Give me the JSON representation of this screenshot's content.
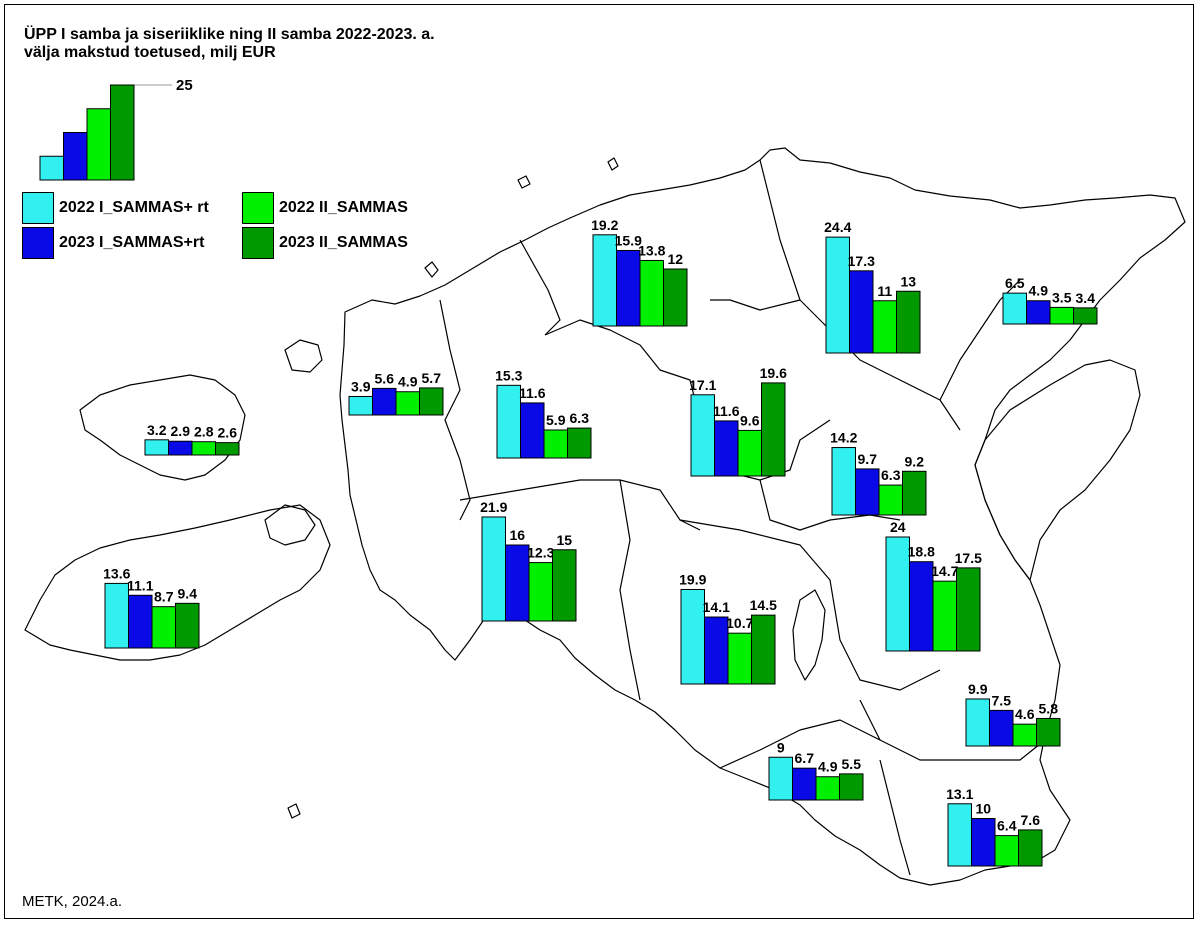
{
  "title_lines": [
    "ÜPP I samba ja siseriiklike ning II samba 2022-2023. a.",
    "välja makstud toetused, milj EUR"
  ],
  "credit": "METK, 2024.a.",
  "scale_value": 25,
  "scale_label": "25",
  "legend": [
    {
      "label": "2022 I_SAMMAS+ rt",
      "color": "#33f0f0"
    },
    {
      "label": "2023 I_SAMMAS+rt",
      "color": "#0a0ae6"
    },
    {
      "label": "2022 II_SAMMAS",
      "color": "#00f000"
    },
    {
      "label": "2023 II_SAMMAS",
      "color": "#009900"
    }
  ],
  "chart_data": {
    "type": "bar",
    "series": [
      "2022 I_SAMMAS+ rt",
      "2023 I_SAMMAS+rt",
      "2022 II_SAMMAS",
      "2023 II_SAMMAS"
    ],
    "unit": "milj EUR",
    "groups": [
      {
        "values": [
          19.2,
          15.9,
          13.8,
          12
        ],
        "labels": [
          "19.2",
          "15.9",
          "13.8",
          "12"
        ]
      },
      {
        "values": [
          24.4,
          17.3,
          11,
          13
        ],
        "labels": [
          "24.4",
          "17.3",
          "11",
          "13"
        ]
      },
      {
        "values": [
          6.5,
          4.9,
          3.5,
          3.4
        ],
        "labels": [
          "6.5",
          "4.9",
          "3.5",
          "3.4"
        ]
      },
      {
        "values": [
          3.9,
          5.6,
          4.9,
          5.7
        ],
        "labels": [
          "3.9",
          "5.6",
          "4.9",
          "5.7"
        ]
      },
      {
        "values": [
          3.2,
          2.9,
          2.8,
          2.6
        ],
        "labels": [
          "3.2",
          "2.9",
          "2.8",
          "2.6"
        ]
      },
      {
        "values": [
          15.3,
          11.6,
          5.9,
          6.3
        ],
        "labels": [
          "15.3",
          "11.6",
          "5.9",
          "6.3"
        ]
      },
      {
        "values": [
          17.1,
          11.6,
          9.6,
          19.6
        ],
        "labels": [
          "17.1",
          "11.6",
          "9.6",
          "19.6"
        ]
      },
      {
        "values": [
          14.2,
          9.7,
          6.3,
          9.2
        ],
        "labels": [
          "14.2",
          "9.7",
          "6.3",
          "9.2"
        ]
      },
      {
        "values": [
          21.9,
          16,
          12.3,
          15
        ],
        "labels": [
          "21.9",
          "16",
          "12.3",
          "15"
        ]
      },
      {
        "values": [
          13.6,
          11.1,
          8.7,
          9.4
        ],
        "labels": [
          "13.6",
          "11.1",
          "8.7",
          "9.4"
        ]
      },
      {
        "values": [
          19.9,
          14.1,
          10.7,
          14.5
        ],
        "labels": [
          "19.9",
          "14.1",
          "10.7",
          "14.5"
        ]
      },
      {
        "values": [
          24,
          18.8,
          14.7,
          17.5
        ],
        "labels": [
          "24",
          "18.8",
          "14.7",
          "17.5"
        ]
      },
      {
        "values": [
          9.9,
          7.5,
          4.6,
          5.8
        ],
        "labels": [
          "9.9",
          "7.5",
          "4.6",
          "5.8"
        ]
      },
      {
        "values": [
          9,
          6.7,
          4.9,
          5.5
        ],
        "labels": [
          "9",
          "6.7",
          "4.9",
          "5.5"
        ]
      },
      {
        "values": [
          13.1,
          10,
          6.4,
          7.6
        ],
        "labels": [
          "13.1",
          "10",
          "6.4",
          "7.6"
        ]
      }
    ]
  }
}
